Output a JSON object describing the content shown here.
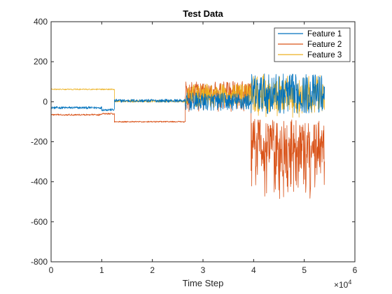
{
  "chart_data": {
    "type": "line",
    "title": "Test Data",
    "xlabel": "Time Step",
    "ylabel": "",
    "x_exponent_label": "×10",
    "x_exponent_power": "4",
    "xlim": [
      0,
      60000
    ],
    "ylim": [
      -800,
      400
    ],
    "x_ticks": [
      0,
      10000,
      20000,
      30000,
      40000,
      50000,
      60000
    ],
    "x_tick_labels": [
      "0",
      "1",
      "2",
      "3",
      "4",
      "5",
      "6"
    ],
    "y_ticks": [
      -800,
      -600,
      -400,
      -200,
      0,
      200,
      400
    ],
    "y_tick_labels": [
      "-800",
      "-600",
      "-400",
      "-200",
      "0",
      "200",
      "400"
    ],
    "grid": false,
    "legend_position": "top-right",
    "series": [
      {
        "name": "Feature 1",
        "color": "#0072BD",
        "segments": [
          {
            "x_start": 0,
            "x_end": 10000,
            "level": -30,
            "spread": 6
          },
          {
            "x_start": 10000,
            "x_end": 12500,
            "level": -40,
            "spread": 6
          },
          {
            "x_start": 12500,
            "x_end": 26500,
            "level": 5,
            "spread": 8
          },
          {
            "x_start": 26500,
            "x_end": 39500,
            "level": 0,
            "spread": 45
          },
          {
            "x_start": 39500,
            "x_end": 54000,
            "level": 40,
            "spread": 100
          }
        ]
      },
      {
        "name": "Feature 2",
        "color": "#D95319",
        "segments": [
          {
            "x_start": 0,
            "x_end": 10000,
            "level": -65,
            "spread": 4
          },
          {
            "x_start": 10000,
            "x_end": 12500,
            "level": -60,
            "spread": 4
          },
          {
            "x_start": 12500,
            "x_end": 26500,
            "level": -100,
            "spread": 3
          },
          {
            "x_start": 26500,
            "x_end": 39500,
            "level": 50,
            "spread": 150
          },
          {
            "x_start": 39500,
            "x_end": 54000,
            "level": -220,
            "spread": 380
          }
        ]
      },
      {
        "name": "Feature 3",
        "color": "#EDB120",
        "segments": [
          {
            "x_start": 0,
            "x_end": 12500,
            "level": 62,
            "spread": 3
          },
          {
            "x_start": 12500,
            "x_end": 26500,
            "level": 3,
            "spread": 6
          },
          {
            "x_start": 26500,
            "x_end": 39500,
            "level": 30,
            "spread": 60
          },
          {
            "x_start": 39500,
            "x_end": 54000,
            "level": 30,
            "spread": 110
          }
        ]
      }
    ]
  }
}
